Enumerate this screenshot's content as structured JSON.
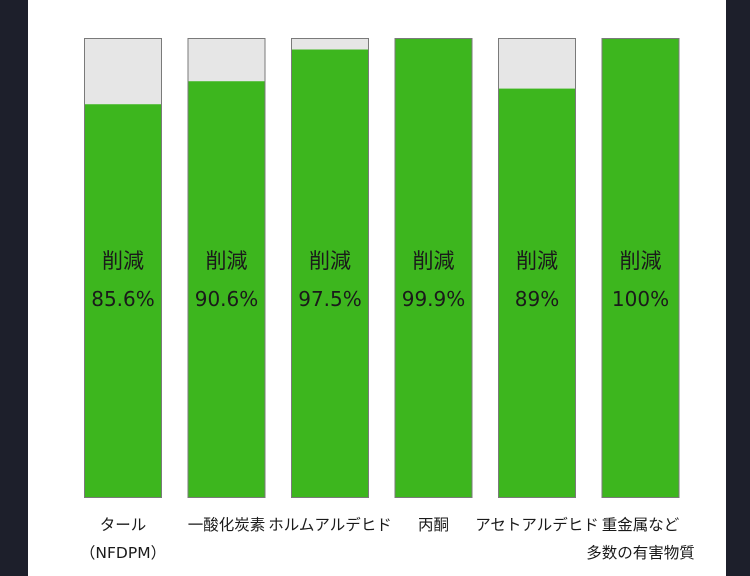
{
  "chart_data": {
    "type": "bar",
    "stacked": true,
    "ylim": [
      0,
      100
    ],
    "grid": false,
    "categories": [
      [
        "タール",
        "（NFDPM）"
      ],
      [
        "一酸化炭素"
      ],
      [
        "ホルムアルデヒド"
      ],
      [
        "丙酮"
      ],
      [
        "アセトアルデヒド"
      ],
      [
        "重金属など",
        "多数の有害物質"
      ]
    ],
    "series": [
      {
        "values": [
          85.6,
          90.6,
          97.5,
          99.9,
          89,
          100
        ]
      }
    ],
    "bar_labels": [
      {
        "line1": "削減",
        "line2": "85.6%"
      },
      {
        "line1": "削減",
        "line2": "90.6%"
      },
      {
        "line1": "削減",
        "line2": "97.5%"
      },
      {
        "line1": "削減",
        "line2": "99.9%"
      },
      {
        "line1": "削減",
        "line2": "89%"
      },
      {
        "line1": "削減",
        "line2": "100%"
      }
    ],
    "colors": {
      "fill": "#3db61e",
      "remainder": "#e6e6e6",
      "border": "#7a7a7a",
      "text": "#1a1a1a"
    }
  }
}
